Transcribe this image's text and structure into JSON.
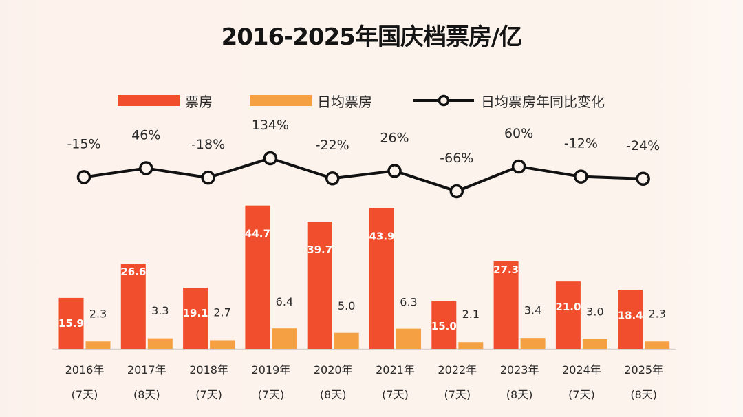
{
  "title": "2016-2025年国庆档票房/亿",
  "colors": {
    "box_office": "#f04e2c",
    "daily_avg": "#f5a043",
    "line": "#111111",
    "text": "#2a2a2a",
    "bar_label_inside": "#ffffff",
    "baseline": "#d8d0cc"
  },
  "legend": [
    {
      "name": "票房",
      "type": "bar",
      "color": "#f04e2c"
    },
    {
      "name": "日均票房",
      "type": "bar",
      "color": "#f5a043"
    },
    {
      "name": "日均票房年同比变化",
      "type": "line-marker",
      "color": "#111111"
    }
  ],
  "chart_data": {
    "type": "bar",
    "title": "2016-2025年国庆档票房/亿",
    "xlabel": "",
    "ylabel": "",
    "unit": "亿",
    "categories": [
      "2016年",
      "2017年",
      "2018年",
      "2019年",
      "2020年",
      "2021年",
      "2022年",
      "2023年",
      "2024年",
      "2025年"
    ],
    "category_sublabels": [
      "(7天)",
      "(8天)",
      "(7天)",
      "(7天)",
      "(8天)",
      "(7天)",
      "(7天)",
      "(8天)",
      "(7天)",
      "(8天)"
    ],
    "series": [
      {
        "name": "票房",
        "type": "bar",
        "values": [
          15.9,
          26.6,
          19.1,
          44.7,
          39.7,
          43.9,
          15.0,
          27.3,
          21.0,
          18.4
        ],
        "labels": [
          "15.9",
          "26.6",
          "19.1",
          "44.7",
          "39.7",
          "43.9",
          "15.0",
          "27.3",
          "21.0",
          "18.4"
        ]
      },
      {
        "name": "日均票房",
        "type": "bar",
        "values": [
          2.3,
          3.3,
          2.7,
          6.4,
          5.0,
          6.3,
          2.1,
          3.4,
          3.0,
          2.3
        ],
        "labels": [
          "2.3",
          "3.3",
          "2.7",
          "6.4",
          "5.0",
          "6.3",
          "2.1",
          "3.4",
          "3.0",
          "2.3"
        ]
      },
      {
        "name": "日均票房年同比变化",
        "type": "line",
        "values": [
          -15,
          46,
          -18,
          134,
          -22,
          26,
          -66,
          60,
          -12,
          -24
        ],
        "labels": [
          "-15%",
          "46%",
          "-18%",
          "134%",
          "-22%",
          "26%",
          "-66%",
          "60%",
          "-12%",
          "-24%"
        ]
      }
    ],
    "ylim": [
      0,
      50
    ],
    "grid": false,
    "legend_position": "top-center"
  }
}
